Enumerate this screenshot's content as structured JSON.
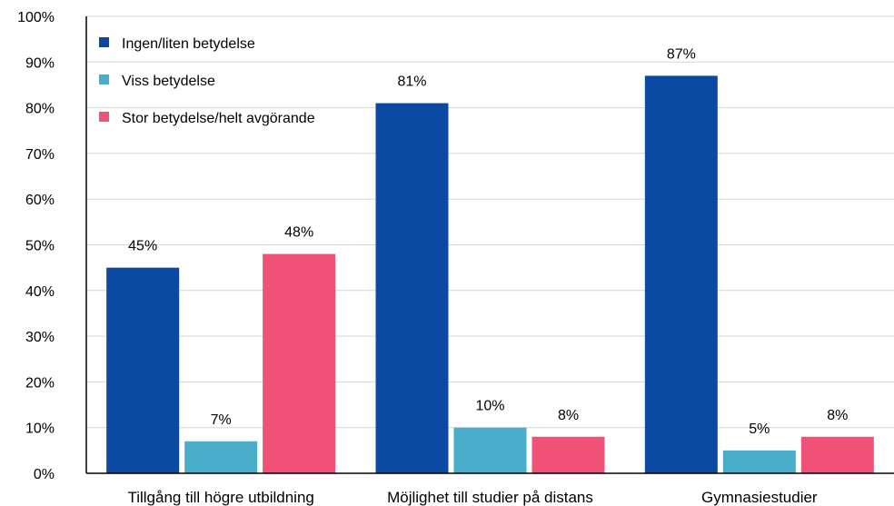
{
  "chart_data": {
    "type": "bar",
    "title": "",
    "xlabel": "",
    "ylabel": "",
    "ylim": [
      0,
      100
    ],
    "y_ticks": [
      "0%",
      "10%",
      "20%",
      "30%",
      "40%",
      "50%",
      "60%",
      "70%",
      "80%",
      "90%",
      "100%"
    ],
    "grid": true,
    "legend_position": "top-left",
    "categories": [
      "Tillgång till högre utbildning",
      "Möjlighet till studier på distans",
      "Gymnasiestudier"
    ],
    "series": [
      {
        "name": "Ingen/liten betydelse",
        "color": "#0b4aa2",
        "values": [
          45,
          81,
          87
        ],
        "labels": [
          "45%",
          "81%",
          "87%"
        ]
      },
      {
        "name": "Viss betydelse",
        "color": "#4aadc9",
        "values": [
          7,
          10,
          5
        ],
        "labels": [
          "7%",
          "10%",
          "5%"
        ]
      },
      {
        "name": "Stor betydelse/helt avgörande",
        "color": "#f05278",
        "values": [
          48,
          8,
          8
        ],
        "labels": [
          "48%",
          "8%",
          "8%"
        ]
      }
    ]
  }
}
